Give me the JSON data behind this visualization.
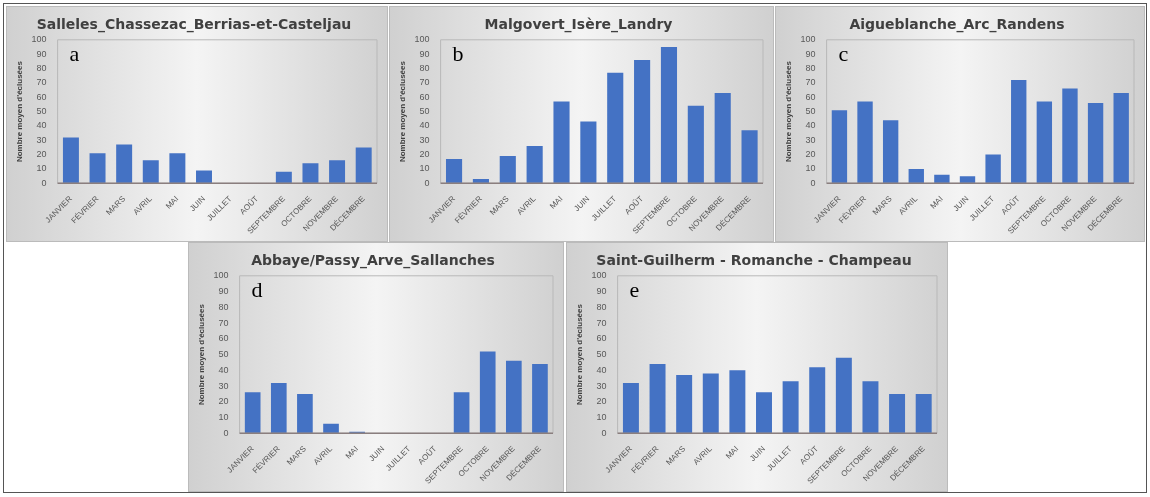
{
  "chart_data": [
    {
      "type": "bar",
      "title": "Salleles_Chassezac_Berrias-et-Casteljau",
      "ylabel": "Nombre moyen d'éclusées",
      "annotations": [
        "a"
      ],
      "categories": [
        "JANVIER",
        "FÉVRIER",
        "MARS",
        "AVRIL",
        "MAI",
        "JUIN",
        "JUILLET",
        "AOÛT",
        "SEPTEMBRE",
        "OCTOBRE",
        "NOVEMBRE",
        "DÉCEMBRE"
      ],
      "values": [
        32,
        21,
        27,
        16,
        21,
        9,
        0,
        0,
        8,
        14,
        16,
        25
      ],
      "color": "#4472c4",
      "ylim": [
        0,
        100
      ],
      "yticks": [
        0,
        10,
        20,
        30,
        40,
        50,
        60,
        70,
        80,
        90,
        100
      ],
      "grid": false,
      "legend": false
    },
    {
      "type": "bar",
      "title": "Malgovert_Isère_Landry",
      "ylabel": "Nombre moyen d'éclusées",
      "annotations": [
        "b"
      ],
      "categories": [
        "JANVIER",
        "FÉVRIER",
        "MARS",
        "AVRIL",
        "MAI",
        "JUIN",
        "JUILLET",
        "AOÛT",
        "SEPTEMBRE",
        "OCTOBRE",
        "NOVEMBRE",
        "DÉCEMBRE"
      ],
      "values": [
        17,
        3,
        19,
        26,
        57,
        43,
        77,
        86,
        95,
        54,
        63,
        37
      ],
      "color": "#4472c4",
      "ylim": [
        0,
        100
      ],
      "yticks": [
        0,
        10,
        20,
        30,
        40,
        50,
        60,
        70,
        80,
        90,
        100
      ],
      "grid": false,
      "legend": false
    },
    {
      "type": "bar",
      "title": "Aigueblanche_Arc_Randens",
      "ylabel": "Nombre moyen d'éclusées",
      "annotations": [
        "c"
      ],
      "categories": [
        "JANVIER",
        "FÉVRIER",
        "MARS",
        "AVRIL",
        "MAI",
        "JUIN",
        "JUILLET",
        "AOÛT",
        "SEPTEMBRE",
        "OCTOBRE",
        "NOVEMBRE",
        "DÉCEMBRE"
      ],
      "values": [
        51,
        57,
        44,
        10,
        6,
        5,
        20,
        72,
        57,
        66,
        56,
        63
      ],
      "color": "#4472c4",
      "ylim": [
        0,
        100
      ],
      "yticks": [
        0,
        10,
        20,
        30,
        40,
        50,
        60,
        70,
        80,
        90,
        100
      ],
      "grid": false,
      "legend": false
    },
    {
      "type": "bar",
      "title": "Abbaye/Passy_Arve_Sallanches",
      "ylabel": "Nombre moyen d'éclusées",
      "annotations": [
        "d"
      ],
      "categories": [
        "JANVIER",
        "FÉVRIER",
        "MARS",
        "AVRIL",
        "MAI",
        "JUIN",
        "JUILLET",
        "AOÛT",
        "SEPTEMBRE",
        "OCTOBRE",
        "NOVEMBRE",
        "DÉCEMBRE"
      ],
      "values": [
        26,
        32,
        25,
        6,
        1,
        0,
        0,
        0,
        26,
        52,
        46,
        44
      ],
      "color": "#4472c4",
      "ylim": [
        0,
        100
      ],
      "yticks": [
        0,
        10,
        20,
        30,
        40,
        50,
        60,
        70,
        80,
        90,
        100
      ],
      "grid": false,
      "legend": false
    },
    {
      "type": "bar",
      "title": "Saint-Guilherm - Romanche - Champeau",
      "ylabel": "Nombre moyen d'éclusées",
      "annotations": [
        "e"
      ],
      "categories": [
        "JANVIER",
        "FÉVRIER",
        "MARS",
        "AVRIL",
        "MAI",
        "JUIN",
        "JUILLET",
        "AOÛT",
        "SEPTEMBRE",
        "OCTOBRE",
        "NOVEMBRE",
        "DÉCEMBRE"
      ],
      "values": [
        32,
        44,
        37,
        38,
        40,
        26,
        33,
        42,
        48,
        33,
        25,
        25
      ],
      "color": "#4472c4",
      "ylim": [
        0,
        100
      ],
      "yticks": [
        0,
        10,
        20,
        30,
        40,
        50,
        60,
        70,
        80,
        90,
        100
      ],
      "grid": false,
      "legend": false
    }
  ]
}
